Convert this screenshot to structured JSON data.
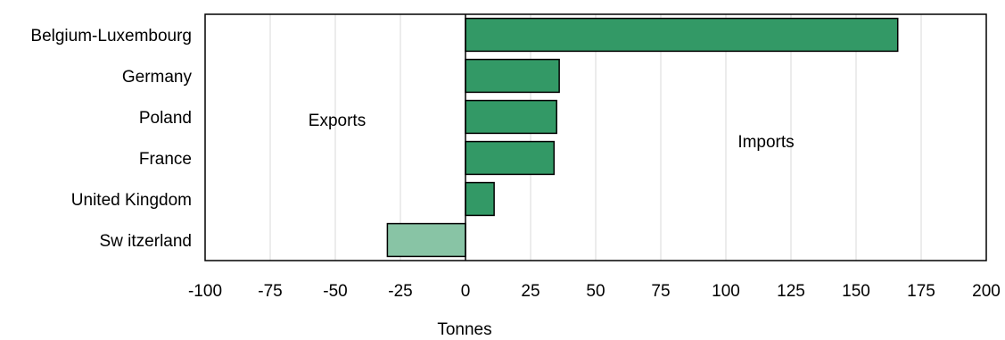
{
  "chart_data": {
    "type": "bar",
    "orientation": "horizontal",
    "categories": [
      "Belgium-Luxembourg",
      "Germany",
      "Poland",
      "France",
      "United Kingdom",
      "Sw itzerland"
    ],
    "values": [
      166,
      36,
      35,
      34,
      11,
      -30
    ],
    "xlabel": "Tonnes",
    "xlim": [
      -100,
      200
    ],
    "xticks": [
      -100,
      -75,
      -50,
      -25,
      0,
      25,
      50,
      75,
      100,
      125,
      150,
      175,
      200
    ],
    "grid": "vertical",
    "colors": {
      "positive": "#339966",
      "negative": "#88c4a5",
      "grid": "#d9d9d9"
    },
    "annotations": {
      "exports": "Exports",
      "imports": "Imports"
    }
  }
}
